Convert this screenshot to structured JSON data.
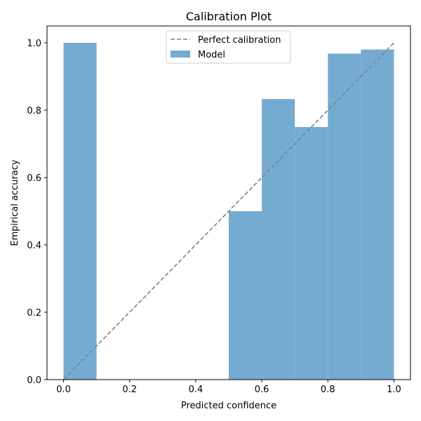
{
  "chart_data": {
    "type": "bar",
    "title": "Calibration Plot",
    "xlabel": "Predicted confidence",
    "ylabel": "Empirical accuracy",
    "xlim": [
      -0.05,
      1.05
    ],
    "ylim": [
      0,
      1.05
    ],
    "bin_width": 0.1,
    "bins": [
      {
        "left": 0.0,
        "value": 1.0
      },
      {
        "left": 0.5,
        "value": 0.5
      },
      {
        "left": 0.6,
        "value": 0.833
      },
      {
        "left": 0.7,
        "value": 0.75
      },
      {
        "left": 0.8,
        "value": 0.968
      },
      {
        "left": 0.9,
        "value": 0.98
      }
    ],
    "reference_line": {
      "name": "Perfect calibration",
      "x": [
        0,
        1
      ],
      "y": [
        0,
        1
      ],
      "color": "#808080",
      "style": "dashed"
    },
    "series_name": "Model",
    "bar_color": "#75abd1",
    "xticks": [
      "0.0",
      "0.2",
      "0.4",
      "0.6",
      "0.8",
      "1.0"
    ],
    "xtick_values": [
      0,
      0.2,
      0.4,
      0.6,
      0.8,
      1.0
    ],
    "yticks": [
      "0.0",
      "0.2",
      "0.4",
      "0.6",
      "0.8",
      "1.0"
    ],
    "ytick_values": [
      0,
      0.2,
      0.4,
      0.6,
      0.8,
      1.0
    ],
    "legend": {
      "placement": "upper-center",
      "entries": [
        "Perfect calibration",
        "Model"
      ]
    },
    "grid": false
  }
}
